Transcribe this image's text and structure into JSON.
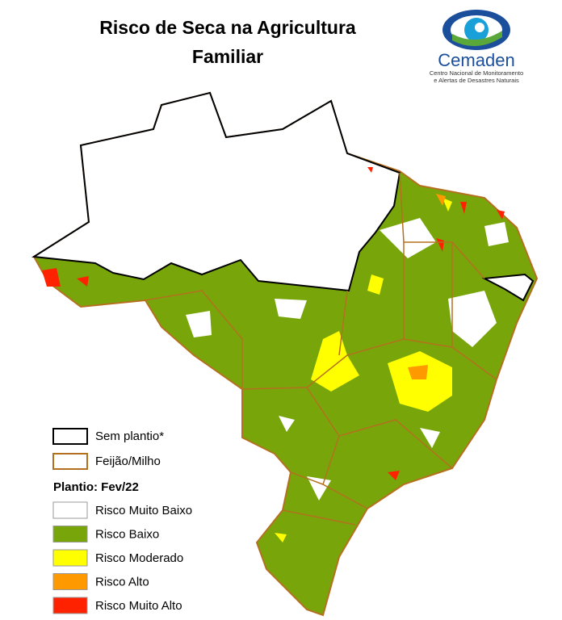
{
  "title": [
    "Risco de Seca na Agricultura",
    "Familiar"
  ],
  "logo": {
    "name": "Cemaden",
    "subtitle": [
      "Centro Nacional de Monitoramento",
      "e Alertas de Desastres Naturais"
    ]
  },
  "legend": {
    "boundaries": [
      {
        "label": "Sem plantio*",
        "color": "#000000"
      },
      {
        "label": "Feijão/Milho",
        "color": "#b5701f"
      }
    ],
    "planting_title": "Plantio: Fev/22",
    "classes": [
      {
        "label": "Risco Muito Baixo",
        "color": "#ffffff"
      },
      {
        "label": "Risco Baixo",
        "color": "#78a60a"
      },
      {
        "label": "Risco Moderado",
        "color": "#ffff00"
      },
      {
        "label": "Risco Alto",
        "color": "#ff9900"
      },
      {
        "label": "Risco Muito Alto",
        "color": "#ff2200"
      }
    ]
  }
}
